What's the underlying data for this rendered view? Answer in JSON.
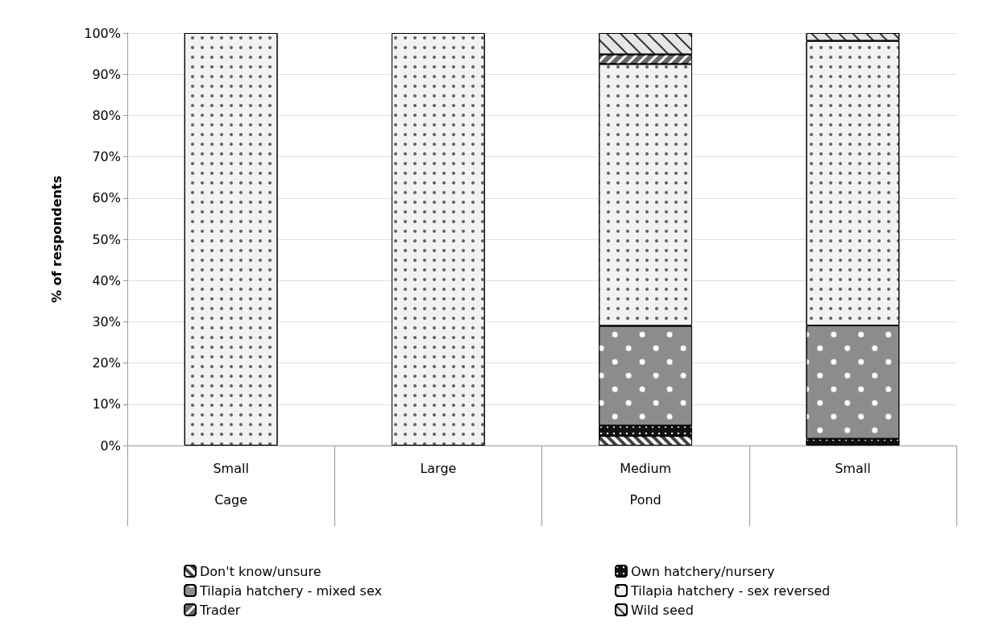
{
  "chart_data": {
    "type": "bar",
    "stacked": true,
    "ylabel": "% of respondents",
    "categories": [
      "Small",
      "Large",
      "Medium",
      "Small"
    ],
    "annotations": [
      "Cage",
      "Pond"
    ],
    "series": [
      {
        "name": "Don't know/unsure",
        "color": "#444444",
        "values": [
          0,
          0,
          2.3,
          0
        ]
      },
      {
        "name": "Own hatchery/nursery",
        "color": "#111111",
        "values": [
          0,
          0,
          2.5,
          1.6
        ]
      },
      {
        "name": "Tilapia hatchery - mixed sex",
        "color": "#8c8c8c",
        "values": [
          0,
          0,
          24.2,
          27.5
        ]
      },
      {
        "name": "Tilapia hatchery - sex reversed",
        "color": "#f2f2f2",
        "values": [
          100,
          100,
          63.5,
          69.0
        ]
      },
      {
        "name": "Trader",
        "color": "#666666",
        "values": [
          0,
          0,
          2.3,
          0
        ]
      },
      {
        "name": "Wild seed",
        "color": "#e6e6e6",
        "values": [
          0,
          0,
          5.2,
          1.9
        ]
      }
    ],
    "ylim": [
      0,
      100
    ],
    "yticks": [
      {
        "value": 0,
        "label": "0%"
      },
      {
        "value": 10,
        "label": "10%"
      },
      {
        "value": 20,
        "label": "20%"
      },
      {
        "value": 30,
        "label": "30%"
      },
      {
        "value": 40,
        "label": "40%"
      },
      {
        "value": 50,
        "label": "50%"
      },
      {
        "value": 60,
        "label": "60%"
      },
      {
        "value": 70,
        "label": "70%"
      },
      {
        "value": 80,
        "label": "80%"
      },
      {
        "value": 90,
        "label": "90%"
      },
      {
        "value": 100,
        "label": "100%"
      }
    ],
    "grid": "y",
    "legend": "bottom"
  }
}
